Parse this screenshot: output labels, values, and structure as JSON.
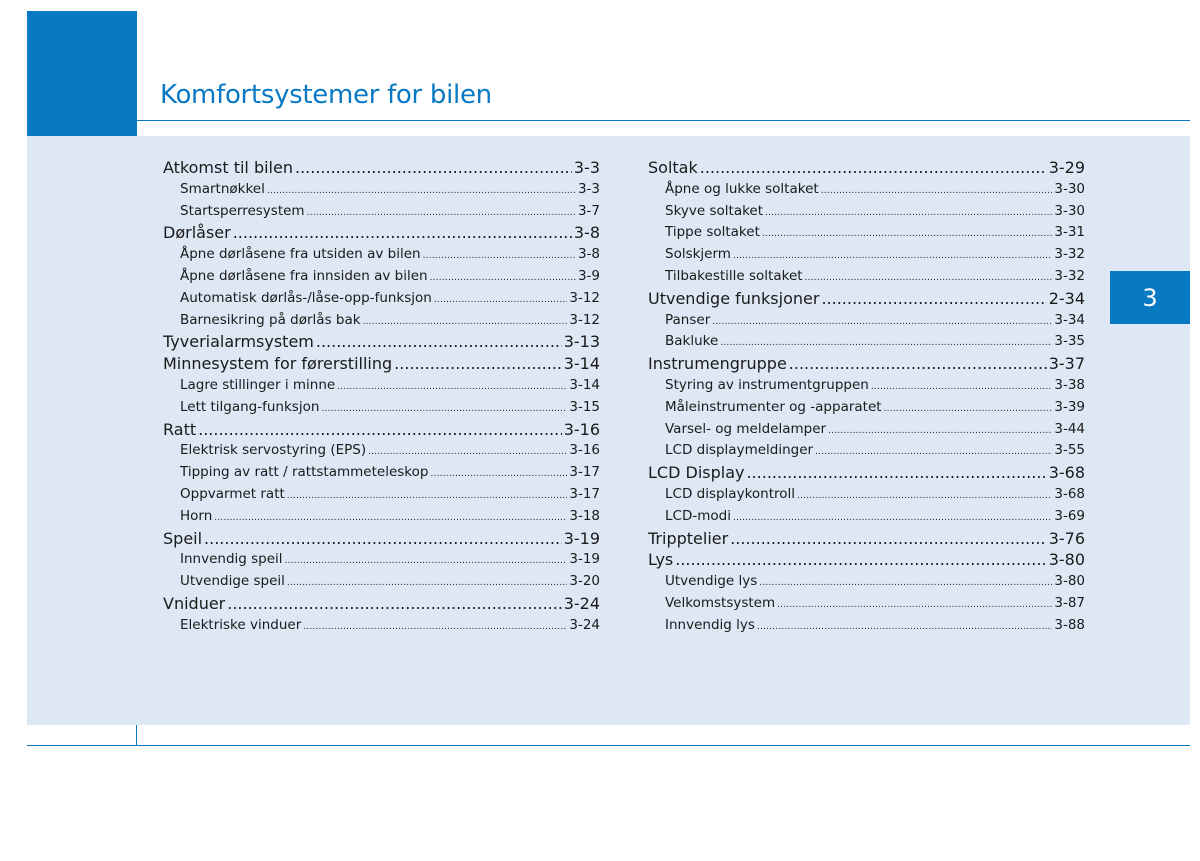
{
  "header": {
    "title": "Komfortsystemer for bilen"
  },
  "chapter_tab": {
    "label": "3"
  },
  "toc_left": [
    {
      "level": "main",
      "label": "Atkomst til bilen",
      "page": "3-3"
    },
    {
      "level": "sub",
      "label": "Smartnøkkel",
      "page": "3-3"
    },
    {
      "level": "sub",
      "label": "Startsperresystem",
      "page": "3-7"
    },
    {
      "level": "main",
      "label": "Dørlåser",
      "page": "3-8"
    },
    {
      "level": "sub",
      "label": "Åpne dørlåsene fra utsiden av bilen",
      "page": "3-8"
    },
    {
      "level": "sub",
      "label": "Åpne dørlåsene fra innsiden av bilen",
      "page": "3-9"
    },
    {
      "level": "sub",
      "label": "Automatisk dørlås-/låse-opp-funksjon",
      "page": "3-12"
    },
    {
      "level": "sub",
      "label": "Barnesikring på dørlås bak",
      "page": "3-12"
    },
    {
      "level": "main",
      "label": "Tyverialarmsystem",
      "page": "3-13"
    },
    {
      "level": "main",
      "label": "Minnesystem for førerstilling",
      "page": "3-14"
    },
    {
      "level": "sub",
      "label": "Lagre stillinger i minne",
      "page": "3-14"
    },
    {
      "level": "sub",
      "label": "Lett tilgang-funksjon",
      "page": "3-15"
    },
    {
      "level": "main",
      "label": "Ratt",
      "page": "3-16"
    },
    {
      "level": "sub",
      "label": "Elektrisk servostyring (EPS)",
      "page": "3-16"
    },
    {
      "level": "sub",
      "label": "Tipping av ratt / rattstammeteleskop",
      "page": "3-17"
    },
    {
      "level": "sub",
      "label": "Oppvarmet ratt",
      "page": "3-17"
    },
    {
      "level": "sub",
      "label": "Horn",
      "page": "3-18"
    },
    {
      "level": "main",
      "label": "Speil",
      "page": "3-19"
    },
    {
      "level": "sub",
      "label": "Innvendig speil",
      "page": "3-19"
    },
    {
      "level": "sub",
      "label": "Utvendige speil",
      "page": "3-20"
    },
    {
      "level": "main",
      "label": "Vniduer",
      "page": "3-24"
    },
    {
      "level": "sub",
      "label": "Elektriske vinduer",
      "page": "3-24"
    }
  ],
  "toc_right": [
    {
      "level": "main",
      "label": "Soltak",
      "page": "3-29"
    },
    {
      "level": "sub",
      "label": "Åpne og lukke soltaket",
      "page": "3-30"
    },
    {
      "level": "sub",
      "label": "Skyve soltaket",
      "page": "3-30"
    },
    {
      "level": "sub",
      "label": "Tippe soltaket",
      "page": "3-31"
    },
    {
      "level": "sub",
      "label": "Solskjerm",
      "page": "3-32"
    },
    {
      "level": "sub",
      "label": "Tilbakestille soltaket",
      "page": "3-32"
    },
    {
      "level": "main",
      "label": "Utvendige funksjoner",
      "page": "2-34"
    },
    {
      "level": "sub",
      "label": "Panser",
      "page": "3-34"
    },
    {
      "level": "sub",
      "label": "Bakluke",
      "page": "3-35"
    },
    {
      "level": "main",
      "label": "Instrumengruppe",
      "page": "3-37"
    },
    {
      "level": "sub",
      "label": "Styring av instrumentgruppen",
      "page": "3-38"
    },
    {
      "level": "sub",
      "label": "Måleinstrumenter og -apparatet",
      "page": "3-39"
    },
    {
      "level": "sub",
      "label": "Varsel- og meldelamper",
      "page": "3-44"
    },
    {
      "level": "sub",
      "label": "LCD displaymeldinger",
      "page": "3-55"
    },
    {
      "level": "main",
      "label": "LCD Display",
      "page": "3-68"
    },
    {
      "level": "sub",
      "label": "LCD displaykontroll",
      "page": "3-68"
    },
    {
      "level": "sub",
      "label": "LCD-modi",
      "page": "3-69"
    },
    {
      "level": "main",
      "label": "Tripptelier",
      "page": "3-76"
    },
    {
      "level": "main",
      "label": "Lys",
      "page": "3-80"
    },
    {
      "level": "sub",
      "label": "Utvendige lys",
      "page": "3-80"
    },
    {
      "level": "sub",
      "label": "Velkomstsystem",
      "page": "3-87"
    },
    {
      "level": "sub",
      "label": "Innvendig lys",
      "page": "3-88"
    }
  ]
}
